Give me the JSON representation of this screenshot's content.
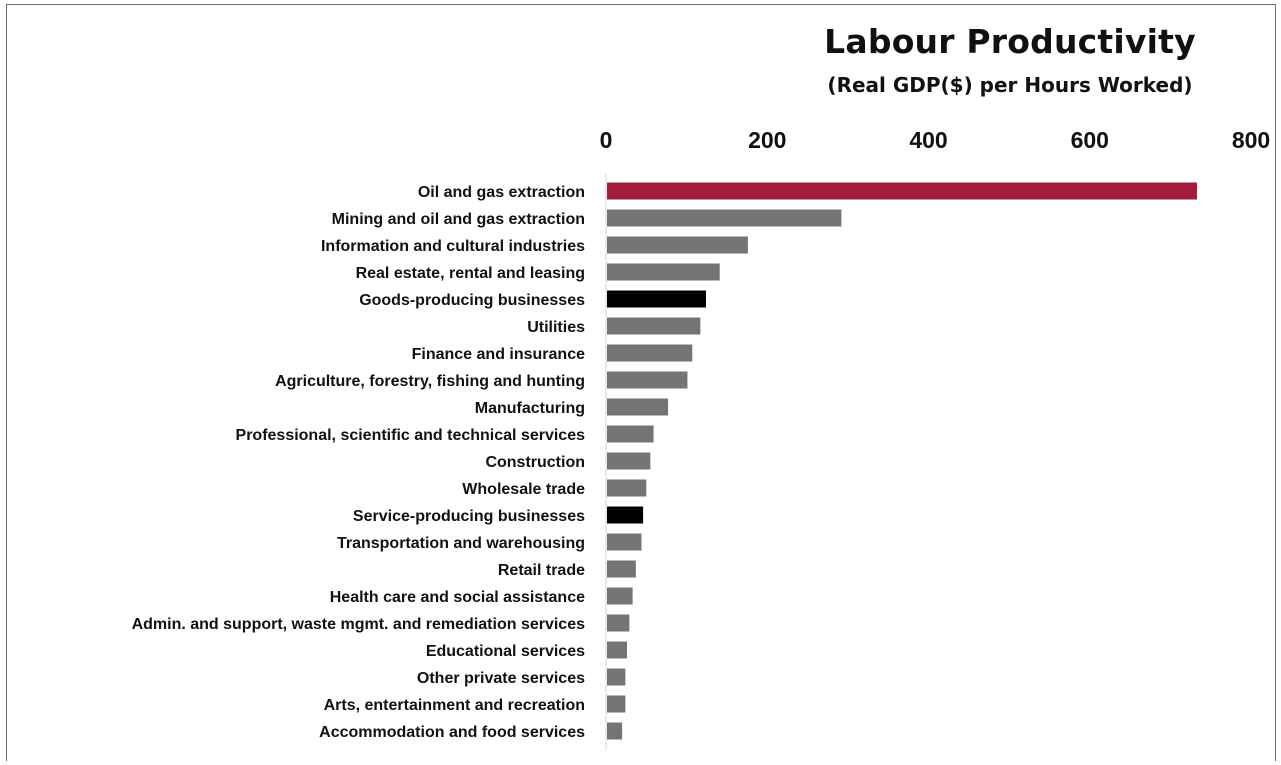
{
  "chart_data": {
    "type": "bar",
    "orientation": "horizontal",
    "title": "Labour Productivity",
    "subtitle": "(Real GDP($) per Hours Worked)",
    "xlabel": "",
    "ylabel": "",
    "xlim": [
      0,
      800
    ],
    "xticks": [
      0,
      200,
      400,
      600,
      800
    ],
    "axis_position": "top",
    "grid": false,
    "categories": [
      "Oil and gas extraction",
      "Mining and oil and gas extraction",
      "Information and cultural industries",
      "Real estate, rental and leasing",
      "Goods-producing businesses",
      "Utilities",
      "Finance and insurance",
      "Agriculture, forestry, fishing and hunting",
      "Manufacturing",
      "Professional, scientific and technical services",
      "Construction",
      "Wholesale trade",
      "Service-producing businesses",
      "Transportation and warehousing",
      "Retail trade",
      "Health care and social assistance",
      "Admin. and support, waste mgmt. and remediation services",
      "Educational services",
      "Other private services",
      "Arts, entertainment and recreation",
      "Accommodation and food services"
    ],
    "values": [
      733,
      292,
      176,
      141,
      124,
      117,
      107,
      101,
      77,
      59,
      55,
      50,
      46,
      44,
      37,
      33,
      29,
      26,
      24,
      24,
      20
    ],
    "bar_colors": [
      "#a11d3b",
      "#747474",
      "#747474",
      "#747474",
      "#000000",
      "#747474",
      "#747474",
      "#747474",
      "#747474",
      "#747474",
      "#747474",
      "#747474",
      "#000000",
      "#747474",
      "#747474",
      "#747474",
      "#747474",
      "#747474",
      "#747474",
      "#747474",
      "#747474"
    ]
  }
}
